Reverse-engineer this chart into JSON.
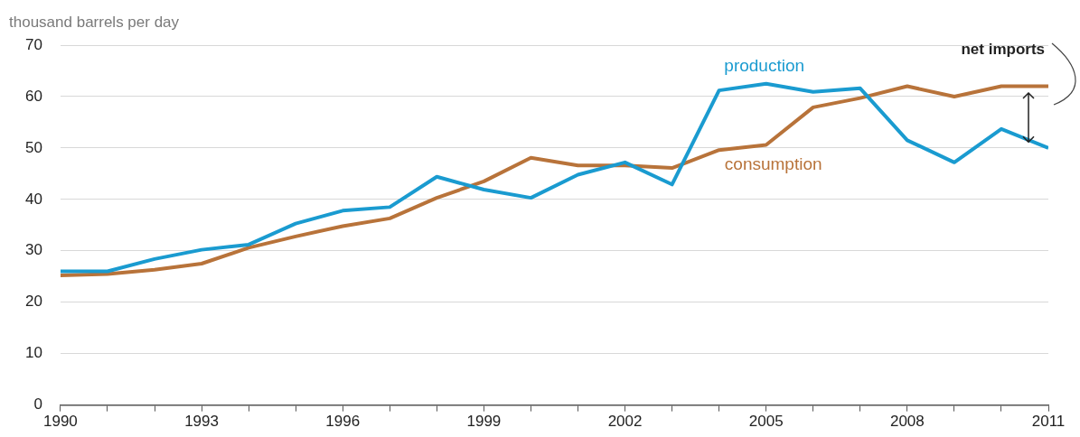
{
  "chart_data": {
    "type": "line",
    "ylabel": "thousand barrels per day",
    "x": [
      1990,
      1991,
      1992,
      1993,
      1994,
      1995,
      1996,
      1997,
      1998,
      1999,
      2000,
      2001,
      2002,
      2003,
      2004,
      2005,
      2006,
      2007,
      2008,
      2009,
      2010,
      2011
    ],
    "series": [
      {
        "name": "production",
        "color": "#1a9bd0",
        "values": [
          26,
          26,
          28.4,
          30.2,
          31.2,
          35.3,
          37.8,
          38.5,
          44.4,
          41.9,
          40.3,
          44.8,
          47.2,
          42.9,
          61.2,
          62.5,
          60.9,
          61.6,
          51.5,
          47.2,
          53.7,
          50.0
        ]
      },
      {
        "name": "consumption",
        "color": "#b8733a",
        "values": [
          25.2,
          25.5,
          26.3,
          27.5,
          30.6,
          32.8,
          34.8,
          36.3,
          40.3,
          43.5,
          48.1,
          46.6,
          46.6,
          46.1,
          49.6,
          50.6,
          57.9,
          59.7,
          62.0,
          60.0,
          62.0,
          62.0
        ]
      }
    ],
    "xlim": [
      1990,
      2011
    ],
    "xticks": [
      1990,
      {
        "value": 1991,
        "label": null
      },
      {
        "value": 1992,
        "label": null
      },
      1993,
      {
        "value": 1994,
        "label": null
      },
      {
        "value": 1995,
        "label": null
      },
      1996,
      {
        "value": 1997,
        "label": null
      },
      {
        "value": 1998,
        "label": null
      },
      1999,
      {
        "value": 2000,
        "label": null
      },
      {
        "value": 2001,
        "label": null
      },
      2002,
      {
        "value": 2003,
        "label": null
      },
      {
        "value": 2004,
        "label": null
      },
      2005,
      {
        "value": 2006,
        "label": null
      },
      {
        "value": 2007,
        "label": null
      },
      2008,
      {
        "value": 2009,
        "label": null
      },
      {
        "value": 2010,
        "label": null
      },
      2011
    ],
    "ylim": [
      0,
      70
    ],
    "yticks": [
      0,
      10,
      20,
      30,
      40,
      50,
      60,
      70
    ],
    "grid": "y",
    "legend": false,
    "marker": "none",
    "line_style": "solid",
    "annotations": [
      "net imports"
    ]
  }
}
